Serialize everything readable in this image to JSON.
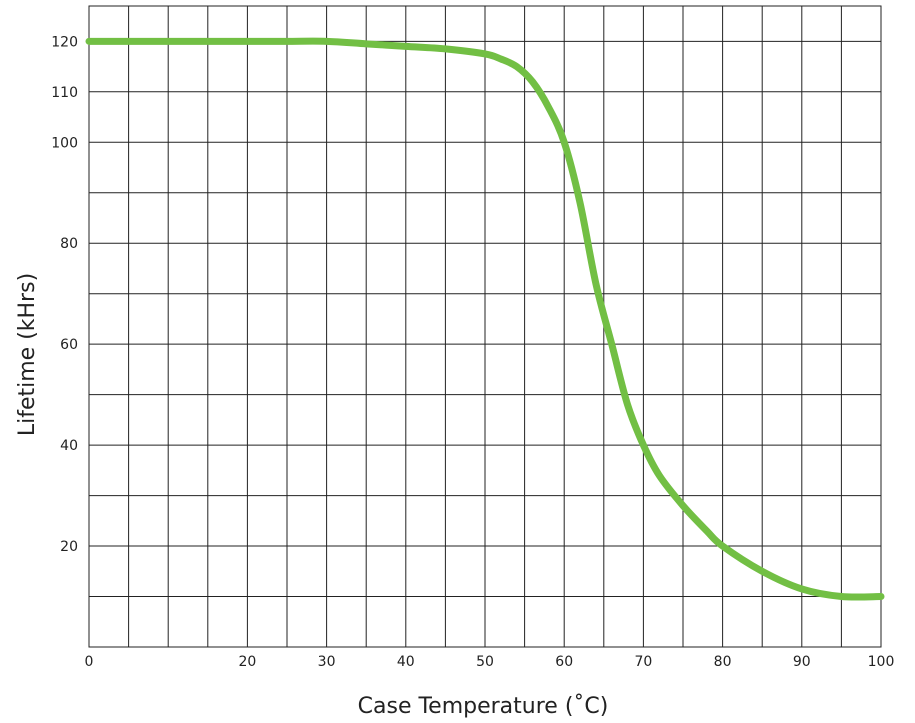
{
  "chart_data": {
    "type": "line",
    "xlabel": "Case Temperature (˚C)",
    "ylabel": "Lifetime (kHrs)",
    "xlim": [
      0,
      100
    ],
    "ylim": [
      0,
      127
    ],
    "x_ticks": [
      0,
      20,
      30,
      40,
      50,
      60,
      70,
      80,
      90,
      100
    ],
    "y_ticks": [
      20,
      40,
      60,
      80,
      100,
      110,
      120
    ],
    "grid": true,
    "colors": {
      "line": "#72bf44",
      "grid": "#222222"
    },
    "series": [
      {
        "x": [
          0,
          5,
          10,
          15,
          20,
          25,
          30,
          35,
          40,
          45,
          50,
          52,
          54,
          56,
          58,
          60,
          62,
          64,
          66,
          68,
          70,
          72,
          75,
          78,
          80,
          85,
          90,
          95,
          100
        ],
        "y": [
          120,
          120,
          120,
          120,
          120,
          120,
          120,
          119.5,
          119,
          118.5,
          117.5,
          116.5,
          115,
          112,
          107,
          100,
          88,
          72,
          60,
          48,
          40,
          34,
          28,
          23,
          20,
          15,
          11.5,
          10,
          10
        ]
      }
    ]
  }
}
